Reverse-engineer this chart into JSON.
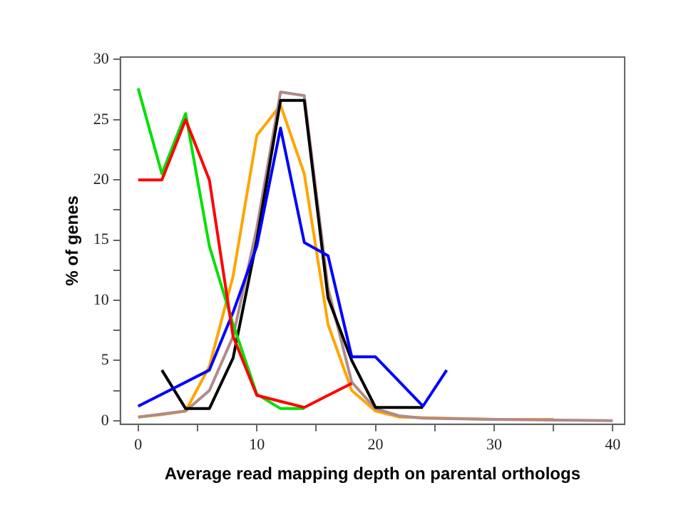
{
  "chart_data": {
    "type": "line",
    "xlabel": "Average read mapping depth on parental orthologs",
    "ylabel": "% of genes",
    "xlim": [
      -1.5,
      41
    ],
    "ylim": [
      -0.3,
      30.2
    ],
    "xticks": [
      0,
      {
        "value": 5,
        "label": null
      },
      10,
      {
        "value": 15,
        "label": null
      },
      20,
      {
        "value": 25,
        "label": null
      },
      30,
      {
        "value": 35,
        "label": null
      },
      40
    ],
    "yticks": [
      0,
      {
        "value": 2.5,
        "label": null
      },
      5,
      {
        "value": 7.5,
        "label": null
      },
      10,
      {
        "value": 12.5,
        "label": null
      },
      15,
      {
        "value": 17.5,
        "label": null
      },
      20,
      {
        "value": 22.5,
        "label": null
      },
      25,
      {
        "value": 27.5,
        "label": null
      },
      30
    ],
    "grid": false,
    "legend": false,
    "marker": "none",
    "line_style": "solid",
    "series": [
      {
        "color": "#ff0000",
        "x": [
          0,
          2,
          4,
          6,
          8,
          10,
          12,
          14,
          16,
          18
        ],
        "values": [
          20,
          20,
          25,
          20,
          7,
          2.1,
          1.6,
          1.1,
          2.1,
          3.1
        ]
      },
      {
        "color": "#00e000",
        "x": [
          0,
          2,
          4,
          6,
          8,
          10,
          12,
          14
        ],
        "values": [
          27.6,
          20.5,
          25.5,
          14.5,
          8,
          2.2,
          1,
          1
        ]
      },
      {
        "color": "#0000ff",
        "x": [
          0,
          6,
          8,
          10,
          12,
          14,
          16,
          18,
          20,
          24,
          26
        ],
        "values": [
          1.2,
          4.2,
          9,
          14.5,
          24.3,
          14.8,
          13.7,
          5.3,
          5.3,
          1.2,
          4.2
        ]
      },
      {
        "color": "#000000",
        "x": [
          2,
          4,
          6,
          8,
          10,
          12,
          14,
          16,
          18,
          20,
          24
        ],
        "values": [
          4.2,
          1,
          1,
          5.2,
          15,
          26.6,
          26.6,
          10.2,
          5,
          1.1,
          1.1
        ]
      },
      {
        "color": "#b08a8a",
        "x": [
          0,
          4,
          6,
          8,
          10,
          12,
          14,
          16,
          18,
          20,
          22,
          24,
          30,
          40
        ],
        "values": [
          0.3,
          0.8,
          2.5,
          7,
          16,
          27.3,
          27,
          11,
          3.2,
          1,
          0.4,
          0.2,
          0.1,
          0
        ]
      },
      {
        "color": "#ffa500",
        "x": [
          0,
          2,
          4,
          6,
          8,
          10,
          12,
          14,
          16,
          18,
          20,
          22,
          30,
          35
        ],
        "values": [
          0.3,
          0.5,
          0.8,
          4.5,
          12,
          23.7,
          26.2,
          20.5,
          8,
          2.5,
          0.8,
          0.3,
          0.1,
          0.1
        ]
      }
    ]
  }
}
